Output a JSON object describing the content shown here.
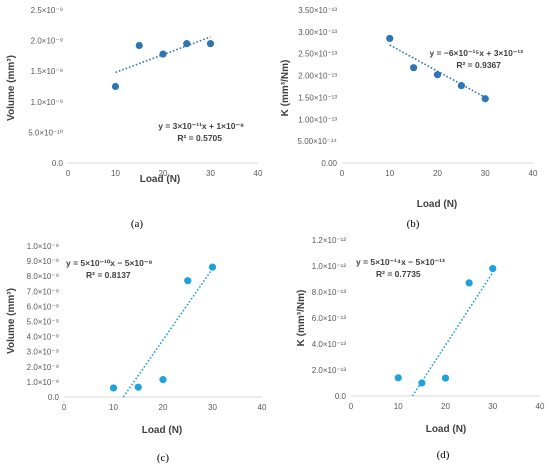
{
  "chart_data": [
    {
      "type": "scatter",
      "caption": "(a)",
      "xlabel": "Load (N)",
      "ylabel": "Volume (mm³)",
      "xlim": [
        0,
        40
      ],
      "ylim": [
        0,
        2.5e-09
      ],
      "x_ticks": [
        0,
        10,
        20,
        30,
        40
      ],
      "x_tick_labels": [
        "0",
        "10",
        "20",
        "30",
        "40"
      ],
      "y_ticks": [
        0,
        5e-10,
        1e-09,
        1.5e-09,
        2e-09,
        2.5e-09
      ],
      "y_tick_labels": [
        "0.0",
        "5.0×10⁻¹⁰",
        "1.0×10⁻⁹",
        "1.5×10⁻⁹",
        "2.0×10⁻⁹",
        "2.5×10⁻⁹"
      ],
      "grid": false,
      "points": {
        "x": [
          10,
          15,
          20,
          25,
          30
        ],
        "y": [
          1.25e-09,
          1.92e-09,
          1.78e-09,
          1.95e-09,
          1.95e-09
        ]
      },
      "trendline": {
        "x": [
          10,
          30
        ],
        "y": [
          1.48e-09,
          2.06e-09
        ]
      },
      "equation": "y = 3×10⁻¹¹x + 1×10⁻⁹",
      "r_squared": "R² = 0.5705",
      "marker_color": "#2E75B6",
      "trend_color": "#2E75B6"
    },
    {
      "type": "scatter",
      "caption": "(b)",
      "xlabel": "Load (N)",
      "ylabel": "K (mm³/Nm)",
      "xlim": [
        0,
        40
      ],
      "ylim": [
        0,
        3.5e-13
      ],
      "x_ticks": [
        0,
        10,
        20,
        30,
        40
      ],
      "x_tick_labels": [
        "0",
        "10",
        "20",
        "30",
        "40"
      ],
      "y_ticks": [
        0,
        5e-14,
        1e-13,
        1.5e-13,
        2e-13,
        2.5e-13,
        3e-13,
        3.5e-13
      ],
      "y_tick_labels": [
        "0.00",
        "5.00×10⁻¹⁴",
        "1.00×10⁻¹³",
        "1.50×10⁻¹³",
        "2.00×10⁻¹³",
        "2.50×10⁻¹³",
        "3.00×10⁻¹³",
        "3.50×10⁻¹³"
      ],
      "grid": false,
      "points": {
        "x": [
          10,
          15,
          20,
          25,
          30
        ],
        "y": [
          2.85e-13,
          2.18e-13,
          2.02e-13,
          1.77e-13,
          1.47e-13
        ]
      },
      "trendline": {
        "x": [
          10,
          30
        ],
        "y": [
          2.7e-13,
          1.5e-13
        ]
      },
      "equation": "y = −6×10⁻¹⁵x + 3×10⁻¹³",
      "r_squared": "R² = 0.9367",
      "marker_color": "#2E75B6",
      "trend_color": "#2E75B6"
    },
    {
      "type": "scatter",
      "caption": "(c)",
      "xlabel": "Load (N)",
      "ylabel": "Volume (mm³)",
      "xlim": [
        0,
        40
      ],
      "ylim": [
        0,
        1e-08
      ],
      "x_ticks": [
        0,
        10,
        20,
        30,
        40
      ],
      "x_tick_labels": [
        "0",
        "10",
        "20",
        "30",
        "40"
      ],
      "y_ticks": [
        0,
        1e-09,
        2e-09,
        3e-09,
        4e-09,
        5e-09,
        6e-09,
        7e-09,
        8e-09,
        9e-09,
        1e-08
      ],
      "y_tick_labels": [
        "0.0",
        "1.0×10⁻⁹",
        "2.0×10⁻⁹",
        "3.0×10⁻⁹",
        "4.0×10⁻⁹",
        "5.0×10⁻⁹",
        "6.0×10⁻⁹",
        "7.0×10⁻⁹",
        "8.0×10⁻⁹",
        "9.0×10⁻⁹",
        "1.0×10⁻⁸"
      ],
      "grid": false,
      "points": {
        "x": [
          10,
          15,
          20,
          25,
          30
        ],
        "y": [
          6e-10,
          6.5e-10,
          1.15e-09,
          7.7e-09,
          8.6e-09
        ]
      },
      "trendline": {
        "x": [
          12,
          30
        ],
        "y": [
          0,
          8.5e-09
        ]
      },
      "equation": "y = 5×10⁻¹⁰x − 5×10⁻⁹",
      "r_squared": "R² = 0.8137",
      "marker_color": "#1FA1DC",
      "trend_color": "#1FA1DC"
    },
    {
      "type": "scatter",
      "caption": "(d)",
      "xlabel": "Load (N)",
      "ylabel": "K (mm³/Nm)",
      "xlim": [
        0,
        40
      ],
      "ylim": [
        0,
        1.2e-12
      ],
      "x_ticks": [
        0,
        10,
        20,
        30,
        40
      ],
      "x_tick_labels": [
        "0",
        "10",
        "20",
        "30",
        "40"
      ],
      "y_ticks": [
        0,
        2e-13,
        4e-13,
        6e-13,
        8e-13,
        1e-12,
        1.2e-12
      ],
      "y_tick_labels": [
        "0.0",
        "2.0×10⁻¹³",
        "4.0×10⁻¹³",
        "6.0×10⁻¹³",
        "8.0×10⁻¹³",
        "1.0×10⁻¹²",
        "1.2×10⁻¹²"
      ],
      "grid": false,
      "points": {
        "x": [
          10,
          15,
          20,
          25,
          30
        ],
        "y": [
          1.4e-13,
          1e-13,
          1.38e-13,
          8.7e-13,
          9.8e-13
        ]
      },
      "trendline": {
        "x": [
          13,
          30
        ],
        "y": [
          0,
          9.5e-13
        ]
      },
      "equation": "y = 5×10⁻¹⁴x − 5×10⁻¹³",
      "r_squared": "R² = 0.7735",
      "marker_color": "#1FA1DC",
      "trend_color": "#1FA1DC"
    }
  ]
}
